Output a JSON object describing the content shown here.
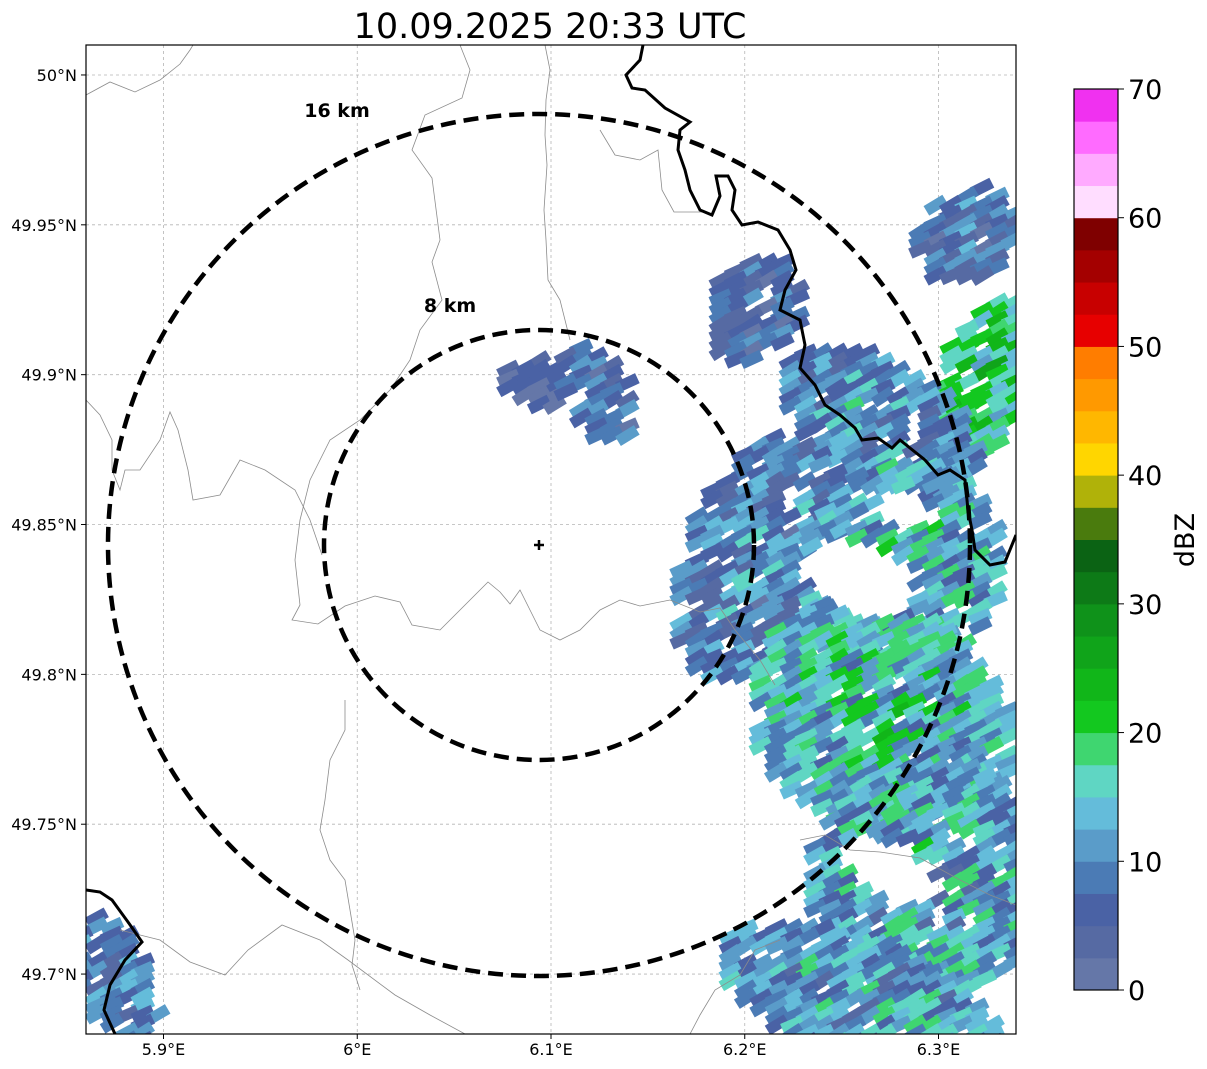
{
  "map": {
    "title": "10.09.2025 20:33 UTC",
    "extent": {
      "lon_min": 5.86,
      "lon_max": 6.34,
      "lat_min": 49.68,
      "lat_max": 50.01
    },
    "x_ticks": [
      {
        "lon": 5.9,
        "label": "5.9°E"
      },
      {
        "lon": 6.0,
        "label": "6°E"
      },
      {
        "lon": 6.1,
        "label": "6.1°E"
      },
      {
        "lon": 6.2,
        "label": "6.2°E"
      },
      {
        "lon": 6.3,
        "label": "6.3°E"
      }
    ],
    "y_ticks": [
      {
        "lat": 50.0,
        "label": "50°N"
      },
      {
        "lat": 49.95,
        "label": "49.95°N"
      },
      {
        "lat": 49.9,
        "label": "49.9°N"
      },
      {
        "lat": 49.85,
        "label": "49.85°N"
      },
      {
        "lat": 49.8,
        "label": "49.8°N"
      },
      {
        "lat": 49.75,
        "label": "49.75°N"
      },
      {
        "lat": 49.7,
        "label": "49.7°N"
      }
    ],
    "gridlines": true,
    "radar_site": {
      "lon": 6.095,
      "lat": 49.843
    },
    "range_rings": [
      {
        "radius_km": 8,
        "label": "8 km"
      },
      {
        "radius_km": 16,
        "label": "16 km"
      }
    ],
    "colorbar": {
      "label": "dBZ",
      "min": 0,
      "max": 70,
      "tick_values": [
        0,
        10,
        20,
        30,
        40,
        50,
        60,
        70
      ],
      "tick_labels": [
        "0",
        "10",
        "20",
        "30",
        "40",
        "50",
        "60",
        "70"
      ],
      "step": 2.5,
      "colors": [
        "#6577a8",
        "#566aa3",
        "#4a62a5",
        "#4b7bb5",
        "#5a9cc9",
        "#64bcda",
        "#5fd6c3",
        "#3fd670",
        "#13c81f",
        "#11b619",
        "#10a41a",
        "#0f921a",
        "#0d7a17",
        "#0b6314",
        "#4a7b0d",
        "#b0b209",
        "#ffd600",
        "#ffb700",
        "#ff9900",
        "#ff7d00",
        "#e70000",
        "#c80000",
        "#a40000",
        "#7f0000",
        "#ffddff",
        "#ffaaff",
        "#ff6bff",
        "#f031f0"
      ]
    }
  }
}
